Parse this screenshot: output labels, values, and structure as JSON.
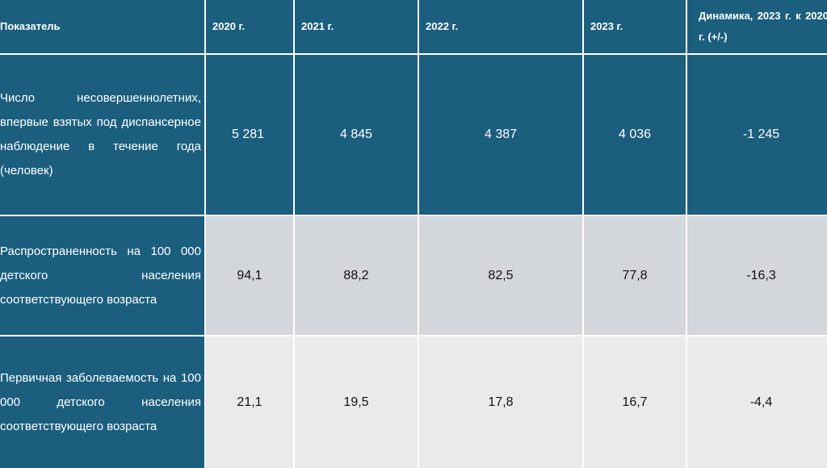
{
  "table": {
    "headers": [
      "Показатель",
      "2020 г.",
      "2021 г.",
      "2022 г.",
      "2023 г.",
      "Динамика, 2023 г. к 2020 г. (+/-)"
    ],
    "rows": [
      {
        "label": "Число несовершеннолетних, впервые взятых под диспансерное наблюдение в течение года (человек)",
        "values": [
          "5 281",
          "4 845",
          "4 387",
          "4 036",
          "-1 245"
        ]
      },
      {
        "label": "Распространенность на 100 000 детского населения соответствующего возраста",
        "values": [
          "94,1",
          "88,2",
          "82,5",
          "77,8",
          "-16,3"
        ]
      },
      {
        "label": "Первичная заболеваемость на 100 000 детского населения соответствующего возраста",
        "values": [
          "21,1",
          "19,5",
          "17,8",
          "16,7",
          "-4,4"
        ]
      }
    ]
  },
  "colors": {
    "header_bg": "#1b5e7e",
    "row2_bg": "#d3d6da",
    "row3_bg": "#e8eaec"
  }
}
